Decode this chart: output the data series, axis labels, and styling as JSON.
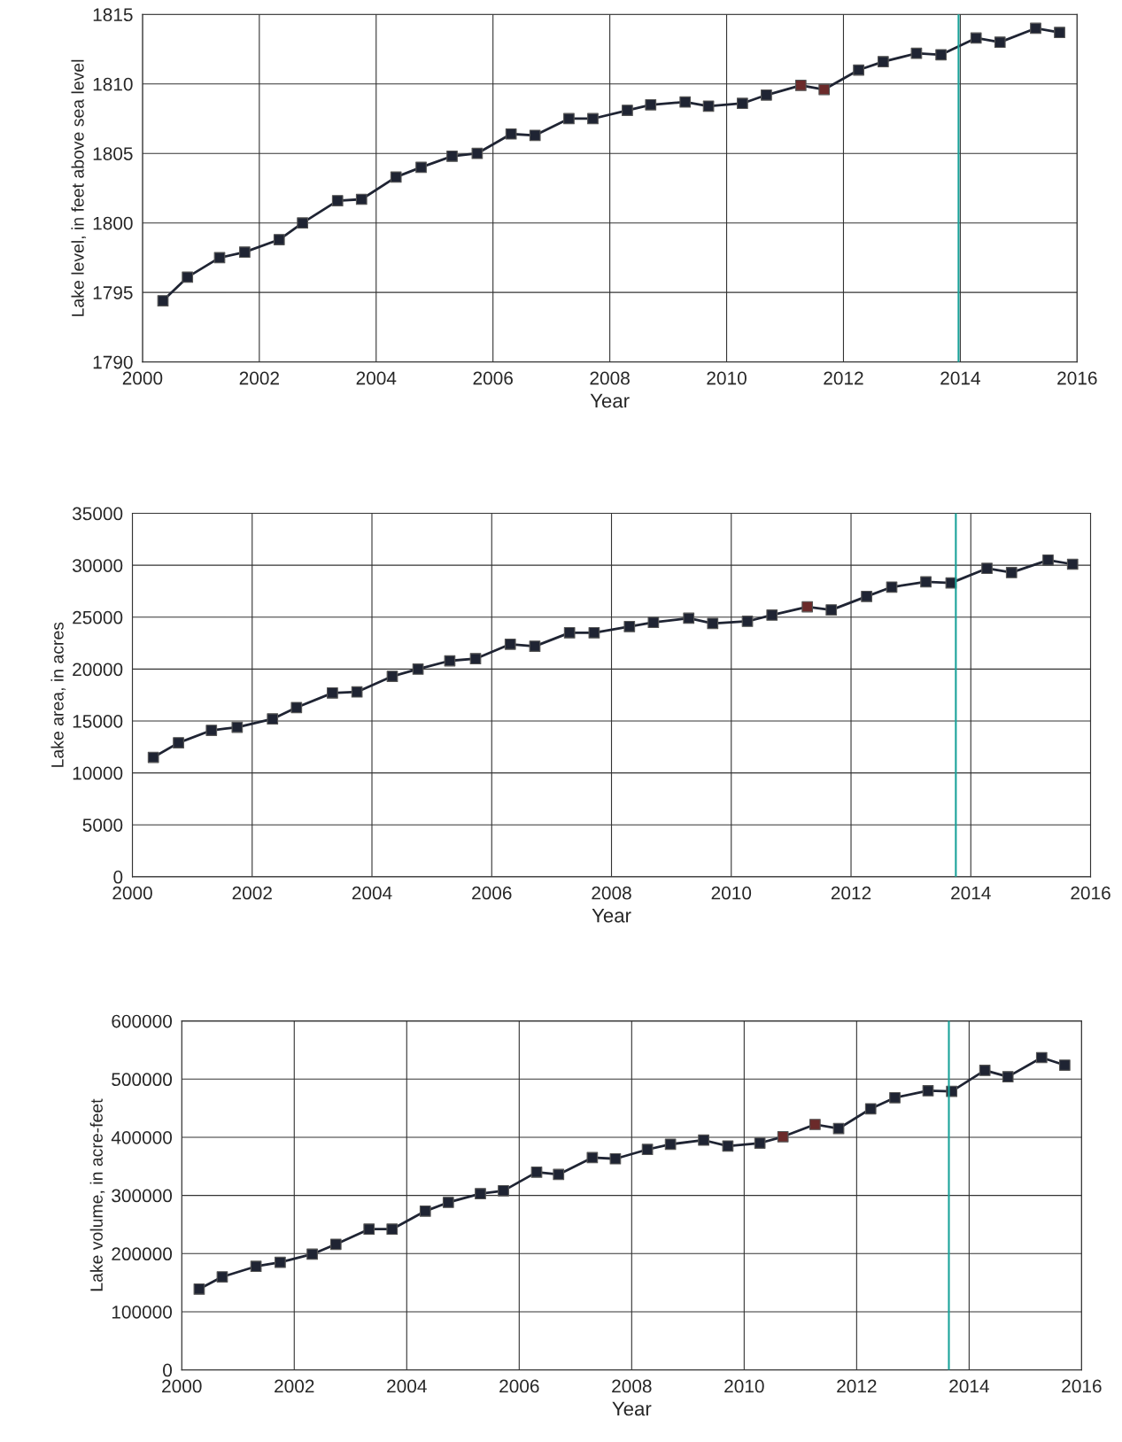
{
  "chart_data": [
    {
      "type": "line",
      "xlabel": "Year",
      "ylabel": "Lake level, in feet above sea level",
      "xlim": [
        2000,
        2016
      ],
      "xticks": [
        2000,
        2002,
        2004,
        2006,
        2008,
        2010,
        2012,
        2014,
        2016
      ],
      "ylim": [
        1790,
        1815
      ],
      "yticks": [
        1790,
        1795,
        1800,
        1805,
        1810,
        1815
      ],
      "grid": true,
      "marker": "square",
      "line_style": "solid",
      "x": [
        2000.35,
        2000.77,
        2001.32,
        2001.75,
        2002.34,
        2002.74,
        2003.34,
        2003.75,
        2004.34,
        2004.77,
        2005.3,
        2005.73,
        2006.31,
        2006.72,
        2007.3,
        2007.71,
        2008.3,
        2008.7,
        2009.29,
        2009.69,
        2010.27,
        2010.68,
        2011.27,
        2011.67,
        2012.26,
        2012.68,
        2013.25,
        2013.67,
        2014.27,
        2014.68,
        2015.29,
        2015.7
      ],
      "series": [
        {
          "color": "#1f2433",
          "colors": [
            "#1f2433",
            "#1f2433",
            "#1f2433",
            "#1f2433",
            "#1f2433",
            "#1f2433",
            "#1f2433",
            "#1f2433",
            "#1f2433",
            "#1f2433",
            "#1f2433",
            "#1f2433",
            "#1f2433",
            "#1f2433",
            "#1f2433",
            "#1f2433",
            "#1f2433",
            "#1f2433",
            "#1f2433",
            "#1f2433",
            "#1f2433",
            "#1f2433",
            "#6b2a2a",
            "#6b2a2a",
            "#1f2433",
            "#1f2433",
            "#1f2433",
            "#1f2433",
            "#1f2433",
            "#1f2433",
            "#1f2433",
            "#1f2433"
          ],
          "values": [
            1794.4,
            1796.1,
            1797.5,
            1797.9,
            1798.8,
            1800.0,
            1801.6,
            1801.7,
            1803.3,
            1804.0,
            1804.8,
            1805.0,
            1806.4,
            1806.3,
            1807.5,
            1807.5,
            1808.1,
            1808.5,
            1808.7,
            1808.4,
            1808.6,
            1809.2,
            1809.9,
            1809.6,
            1811.0,
            1811.6,
            1812.2,
            1812.1,
            1813.3,
            1813.0,
            1814.0,
            1813.7
          ]
        }
      ],
      "ref_lines": [
        {
          "axis": "x",
          "value": 2013.97,
          "color": "#1aa39a"
        }
      ]
    },
    {
      "type": "line",
      "xlabel": "Year",
      "ylabel": "Lake area, in acres",
      "xlim": [
        2000,
        2016
      ],
      "xticks": [
        2000,
        2002,
        2004,
        2006,
        2008,
        2010,
        2012,
        2014,
        2016
      ],
      "ylim": [
        0,
        35000
      ],
      "yticks": [
        0,
        5000,
        10000,
        15000,
        20000,
        25000,
        30000,
        35000
      ],
      "grid": true,
      "marker": "square",
      "line_style": "solid",
      "x": [
        2000.35,
        2000.77,
        2001.32,
        2001.75,
        2002.34,
        2002.74,
        2003.34,
        2003.75,
        2004.34,
        2004.77,
        2005.3,
        2005.73,
        2006.31,
        2006.72,
        2007.3,
        2007.71,
        2008.3,
        2008.7,
        2009.29,
        2009.69,
        2010.27,
        2010.68,
        2011.27,
        2011.67,
        2012.26,
        2012.68,
        2013.25,
        2013.67,
        2014.27,
        2014.68,
        2015.29,
        2015.7
      ],
      "series": [
        {
          "color": "#1f2433",
          "colors": [
            "#1f2433",
            "#1f2433",
            "#1f2433",
            "#1f2433",
            "#1f2433",
            "#1f2433",
            "#1f2433",
            "#1f2433",
            "#1f2433",
            "#1f2433",
            "#1f2433",
            "#1f2433",
            "#1f2433",
            "#1f2433",
            "#1f2433",
            "#1f2433",
            "#1f2433",
            "#1f2433",
            "#1f2433",
            "#1f2433",
            "#1f2433",
            "#1f2433",
            "#6b2a2a",
            "#1f2433",
            "#1f2433",
            "#1f2433",
            "#1f2433",
            "#1f2433",
            "#1f2433",
            "#1f2433",
            "#1f2433",
            "#1f2433"
          ],
          "values": [
            11500,
            12900,
            14100,
            14400,
            15200,
            16300,
            17700,
            17800,
            19300,
            20000,
            20800,
            21000,
            22400,
            22200,
            23500,
            23500,
            24100,
            24500,
            24900,
            24400,
            24600,
            25200,
            26000,
            25700,
            27000,
            27900,
            28400,
            28300,
            29700,
            29300,
            30500,
            30100
          ]
        }
      ],
      "ref_lines": [
        {
          "axis": "x",
          "value": 2013.75,
          "color": "#1aa39a"
        }
      ]
    },
    {
      "type": "line",
      "xlabel": "Year",
      "ylabel": "Lake volume, in acre-feet",
      "xlim": [
        2000,
        2016
      ],
      "xticks": [
        2000,
        2002,
        2004,
        2006,
        2008,
        2010,
        2012,
        2014,
        2016
      ],
      "ylim": [
        0,
        600000
      ],
      "yticks": [
        0,
        100000,
        200000,
        300000,
        400000,
        500000,
        600000
      ],
      "grid": true,
      "marker": "square",
      "line_style": "solid",
      "x": [
        2000.31,
        2000.72,
        2001.32,
        2001.75,
        2002.32,
        2002.74,
        2003.33,
        2003.74,
        2004.33,
        2004.74,
        2005.31,
        2005.72,
        2006.31,
        2006.7,
        2007.3,
        2007.71,
        2008.28,
        2008.69,
        2009.28,
        2009.71,
        2010.28,
        2010.69,
        2011.26,
        2011.68,
        2012.25,
        2012.68,
        2013.27,
        2013.69,
        2014.28,
        2014.69,
        2015.29,
        2015.7
      ],
      "series": [
        {
          "color": "#1f2433",
          "colors": [
            "#1f2433",
            "#1f2433",
            "#1f2433",
            "#1f2433",
            "#1f2433",
            "#1f2433",
            "#1f2433",
            "#1f2433",
            "#1f2433",
            "#1f2433",
            "#1f2433",
            "#1f2433",
            "#1f2433",
            "#1f2433",
            "#1f2433",
            "#1f2433",
            "#1f2433",
            "#1f2433",
            "#1f2433",
            "#1f2433",
            "#1f2433",
            "#6b2a2a",
            "#6b2a2a",
            "#1f2433",
            "#1f2433",
            "#1f2433",
            "#1f2433",
            "#1f2433",
            "#1f2433",
            "#1f2433",
            "#1f2433",
            "#1f2433"
          ],
          "values": [
            139000,
            160000,
            178000,
            185000,
            199000,
            216000,
            242000,
            242000,
            273000,
            288000,
            303000,
            308000,
            340000,
            336000,
            365000,
            363000,
            379000,
            388000,
            395000,
            385000,
            390000,
            401000,
            422000,
            415000,
            449000,
            468000,
            480000,
            479000,
            515000,
            504000,
            537000,
            524000
          ]
        }
      ],
      "ref_lines": [
        {
          "axis": "x",
          "value": 2013.64,
          "color": "#1aa39a"
        }
      ]
    }
  ]
}
